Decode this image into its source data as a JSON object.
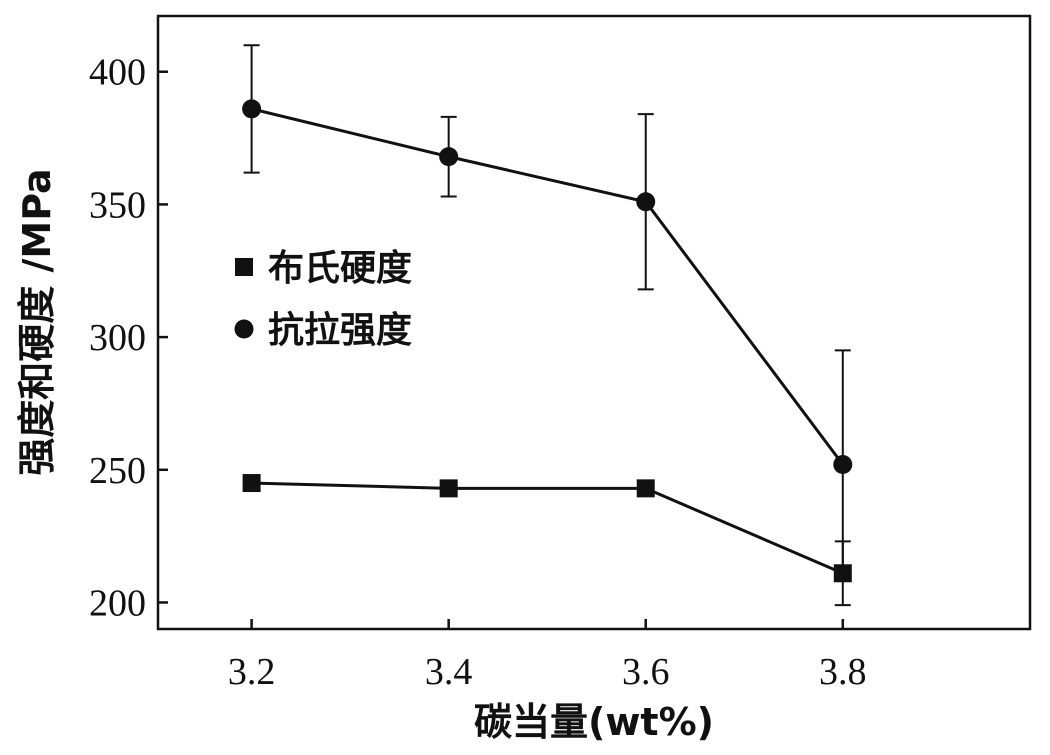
{
  "chart_data": {
    "type": "line",
    "title": "",
    "xlabel": "碳当量(wt%)",
    "ylabel": "强度和硬度 /MPa",
    "x": [
      3.2,
      3.4,
      3.6,
      3.8
    ],
    "x_tick_labels": [
      "3.2",
      "3.4",
      "3.6",
      "3.8"
    ],
    "xlim": [
      3.105,
      3.99
    ],
    "ylim": [
      190,
      421
    ],
    "y_ticks": [
      200,
      250,
      300,
      350,
      400
    ],
    "y_tick_labels": [
      "200",
      "250",
      "300",
      "350",
      "400"
    ],
    "grid": false,
    "legend_position": "center-left",
    "series": [
      {
        "name": "布氏硬度",
        "marker": "square",
        "values": [
          245,
          243,
          243,
          211
        ],
        "error": [
          null,
          null,
          null,
          12
        ]
      },
      {
        "name": "抗拉强度",
        "marker": "circle",
        "values": [
          386,
          368,
          351,
          252
        ],
        "error": [
          24,
          15,
          33,
          43
        ]
      }
    ]
  }
}
